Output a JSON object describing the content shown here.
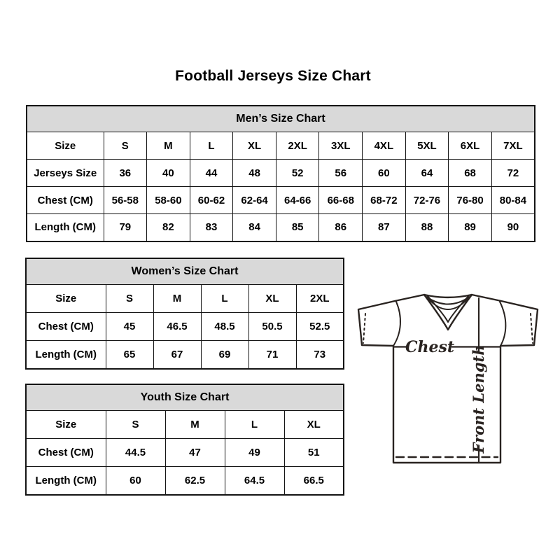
{
  "page": {
    "title": "Football Jerseys Size Chart"
  },
  "tables": {
    "men": {
      "title": "Men’s Size Chart",
      "rows": [
        [
          "Size",
          "S",
          "M",
          "L",
          "XL",
          "2XL",
          "3XL",
          "4XL",
          "5XL",
          "6XL",
          "7XL"
        ],
        [
          "Jerseys Size",
          "36",
          "40",
          "44",
          "48",
          "52",
          "56",
          "60",
          "64",
          "68",
          "72"
        ],
        [
          "Chest (CM)",
          "56-58",
          "58-60",
          "60-62",
          "62-64",
          "64-66",
          "66-68",
          "68-72",
          "72-76",
          "76-80",
          "80-84"
        ],
        [
          "Length (CM)",
          "79",
          "82",
          "83",
          "84",
          "85",
          "86",
          "87",
          "88",
          "89",
          "90"
        ]
      ]
    },
    "women": {
      "title": "Women’s Size Chart",
      "rows": [
        [
          "Size",
          "S",
          "M",
          "L",
          "XL",
          "2XL"
        ],
        [
          "Chest (CM)",
          "45",
          "46.5",
          "48.5",
          "50.5",
          "52.5"
        ],
        [
          "Length (CM)",
          "65",
          "67",
          "69",
          "71",
          "73"
        ]
      ]
    },
    "youth": {
      "title": "Youth Size Chart",
      "rows": [
        [
          "Size",
          "S",
          "M",
          "L",
          "XL"
        ],
        [
          "Chest (CM)",
          "44.5",
          "47",
          "49",
          "51"
        ],
        [
          "Length (CM)",
          "60",
          "62.5",
          "64.5",
          "66.5"
        ]
      ]
    }
  },
  "diagram": {
    "chest_label": "Chest",
    "front_length_label": "Front Length"
  },
  "colors": {
    "header_bg": "#d9d9d9",
    "border": "#141414",
    "line_art": "#292320"
  }
}
